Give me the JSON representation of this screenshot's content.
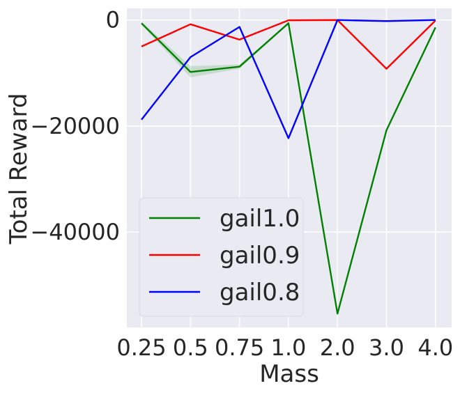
{
  "chart_data": {
    "type": "line",
    "title": "",
    "xlabel": "Mass",
    "ylabel": "Total Reward",
    "categories": [
      "0.25",
      "0.5",
      "0.75",
      "1.0",
      "2.0",
      "3.0",
      "4.0"
    ],
    "yticks": [
      0,
      -20000,
      -40000
    ],
    "ytick_labels": [
      "0",
      "−20000",
      "−40000"
    ],
    "ylim": [
      -58000,
      2200
    ],
    "grid": true,
    "legend_position": "lower-left",
    "background": "#eaeaf2",
    "series": [
      {
        "name": "gail1.0",
        "color": "#008000",
        "values": [
          -600,
          -9800,
          -8800,
          -600,
          -55400,
          -20800,
          -1400
        ],
        "band": {
          "low": [
            -900,
            -10800,
            -9200,
            -700,
            -55500,
            -20900,
            -1500
          ],
          "high": [
            -300,
            -8700,
            -8400,
            -500,
            -55300,
            -20700,
            -1300
          ]
        }
      },
      {
        "name": "gail0.9",
        "color": "#ff0000",
        "values": [
          -5000,
          -800,
          -3700,
          -50,
          0,
          -9200,
          -100
        ]
      },
      {
        "name": "gail0.8",
        "color": "#0000ff",
        "values": [
          -18800,
          -7000,
          -1300,
          -22300,
          0,
          -200,
          0
        ]
      }
    ]
  }
}
